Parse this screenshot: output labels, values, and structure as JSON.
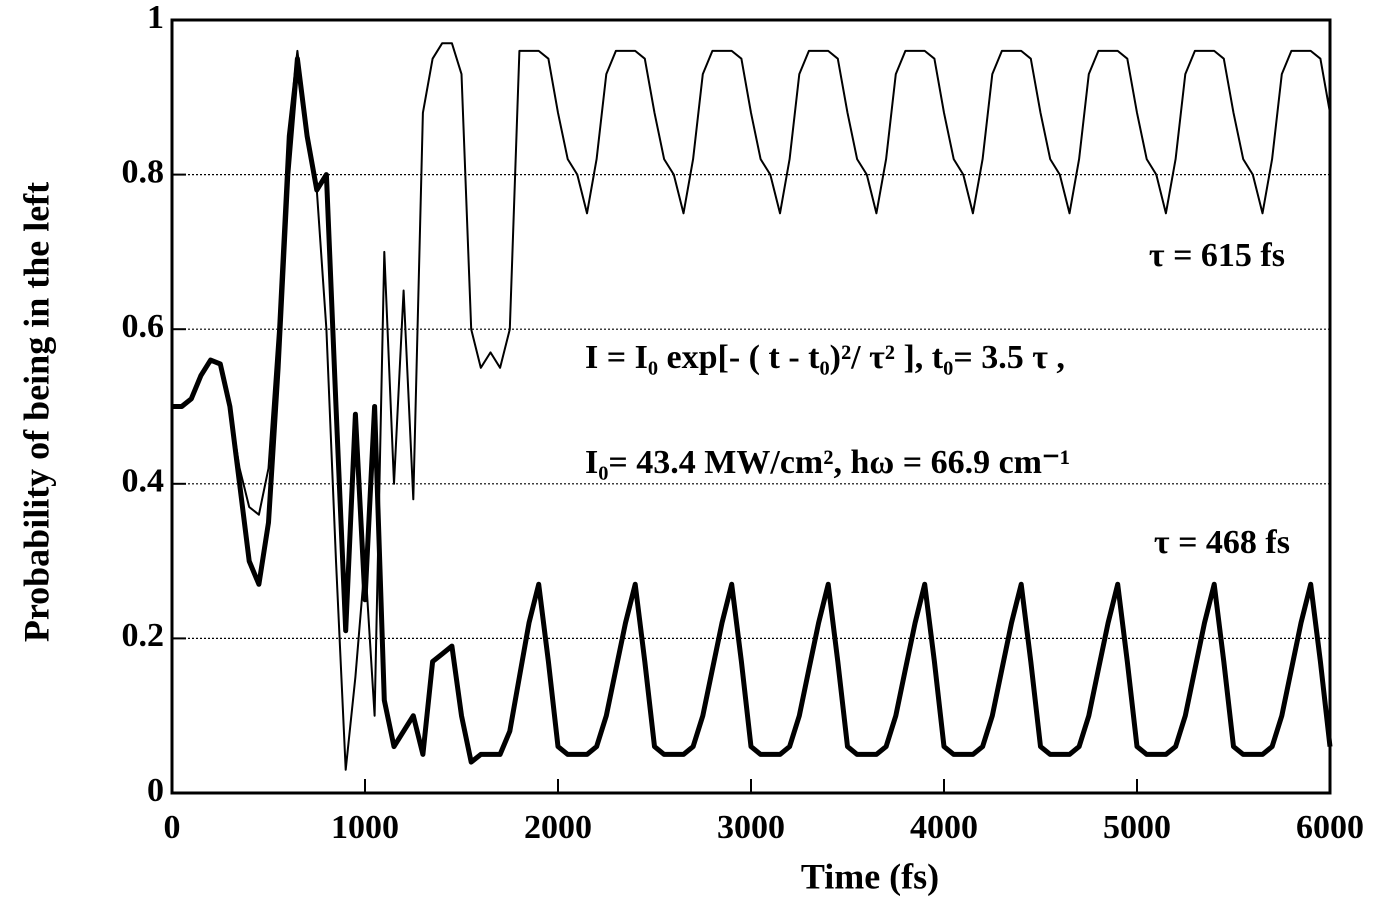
{
  "chart_data": {
    "type": "line",
    "xlabel": "Time (fs)",
    "ylabel": "Probability of being in the left",
    "annotations": [
      "I = I₀ exp[- ( t - t₀)²/ τ² ], t₀= 3.5 τ ,",
      "I₀= 43.4 MW/cm², hω = 66.9 cm⁻¹"
    ],
    "xlim": [
      0,
      6000
    ],
    "xticks": [
      0,
      1000,
      2000,
      3000,
      4000,
      5000,
      6000
    ],
    "ylim": [
      0,
      1
    ],
    "yticks": [
      0,
      0.2,
      0.4,
      0.6,
      0.8,
      1
    ],
    "grid": true,
    "x": [
      0,
      50,
      100,
      150,
      200,
      250,
      300,
      350,
      400,
      450,
      500,
      550,
      600,
      650,
      700,
      750,
      800,
      850,
      900,
      950,
      1000,
      1050,
      1100,
      1150,
      1200,
      1250,
      1300,
      1350,
      1400,
      1450,
      1500,
      1550,
      1600,
      1650,
      1700,
      1750,
      1800,
      1850,
      1900,
      1950,
      2000,
      2050,
      2100,
      2150,
      2200,
      2250,
      2300,
      2350,
      2400,
      2450,
      2500,
      2550,
      2600,
      2650,
      2700,
      2750,
      2800,
      2850,
      2900,
      2950,
      3000,
      3050,
      3100,
      3150,
      3200,
      3250,
      3300,
      3350,
      3400,
      3450,
      3500,
      3550,
      3600,
      3650,
      3700,
      3750,
      3800,
      3850,
      3900,
      3950,
      4000,
      4050,
      4100,
      4150,
      4200,
      4250,
      4300,
      4350,
      4400,
      4450,
      4500,
      4550,
      4600,
      4650,
      4700,
      4750,
      4800,
      4850,
      4900,
      4950,
      5000,
      5050,
      5100,
      5150,
      5200,
      5250,
      5300,
      5350,
      5400,
      5450,
      5500,
      5550,
      5600,
      5650,
      5700,
      5750,
      5800,
      5850,
      5900,
      5950,
      6000
    ],
    "series": [
      {
        "name": "τ = 615 fs",
        "color": "#000000",
        "width": 2,
        "values": [
          0.5,
          0.5,
          0.51,
          0.54,
          0.56,
          0.555,
          0.5,
          0.42,
          0.37,
          0.36,
          0.42,
          0.6,
          0.85,
          0.96,
          0.85,
          0.78,
          0.6,
          0.3,
          0.03,
          0.15,
          0.3,
          0.1,
          0.7,
          0.4,
          0.65,
          0.38,
          0.88,
          0.95,
          0.97,
          0.97,
          0.93,
          0.6,
          0.55,
          0.57,
          0.55,
          0.6,
          0.96,
          0.96,
          0.96,
          0.95,
          0.88,
          0.82,
          0.8,
          0.75,
          0.82,
          0.93,
          0.96,
          0.96,
          0.96,
          0.95,
          0.88,
          0.82,
          0.8,
          0.75,
          0.82,
          0.93,
          0.96,
          0.96,
          0.96,
          0.95,
          0.88,
          0.82,
          0.8,
          0.75,
          0.82,
          0.93,
          0.96,
          0.96,
          0.96,
          0.95,
          0.88,
          0.82,
          0.8,
          0.75,
          0.82,
          0.93,
          0.96,
          0.96,
          0.96,
          0.95,
          0.88,
          0.82,
          0.8,
          0.75,
          0.82,
          0.93,
          0.96,
          0.96,
          0.96,
          0.95,
          0.88,
          0.82,
          0.8,
          0.75,
          0.82,
          0.93,
          0.96,
          0.96,
          0.96,
          0.95,
          0.88,
          0.82,
          0.8,
          0.75,
          0.82,
          0.93,
          0.96,
          0.96,
          0.96,
          0.95,
          0.88,
          0.82,
          0.8,
          0.75,
          0.82,
          0.93,
          0.96,
          0.96,
          0.96,
          0.95,
          0.88
        ]
      },
      {
        "name": "τ = 468 fs",
        "color": "#000000",
        "width": 5,
        "values": [
          0.5,
          0.5,
          0.51,
          0.54,
          0.56,
          0.555,
          0.5,
          0.4,
          0.3,
          0.27,
          0.35,
          0.55,
          0.8,
          0.95,
          0.85,
          0.78,
          0.8,
          0.5,
          0.21,
          0.49,
          0.25,
          0.5,
          0.12,
          0.06,
          0.08,
          0.1,
          0.05,
          0.17,
          0.18,
          0.19,
          0.1,
          0.04,
          0.05,
          0.05,
          0.05,
          0.08,
          0.15,
          0.22,
          0.27,
          0.17,
          0.06,
          0.05,
          0.05,
          0.05,
          0.06,
          0.1,
          0.16,
          0.22,
          0.27,
          0.17,
          0.06,
          0.05,
          0.05,
          0.05,
          0.06,
          0.1,
          0.16,
          0.22,
          0.27,
          0.17,
          0.06,
          0.05,
          0.05,
          0.05,
          0.06,
          0.1,
          0.16,
          0.22,
          0.27,
          0.17,
          0.06,
          0.05,
          0.05,
          0.05,
          0.06,
          0.1,
          0.16,
          0.22,
          0.27,
          0.17,
          0.06,
          0.05,
          0.05,
          0.05,
          0.06,
          0.1,
          0.16,
          0.22,
          0.27,
          0.17,
          0.06,
          0.05,
          0.05,
          0.05,
          0.06,
          0.1,
          0.16,
          0.22,
          0.27,
          0.17,
          0.06,
          0.05,
          0.05,
          0.05,
          0.06,
          0.1,
          0.16,
          0.22,
          0.27,
          0.17,
          0.06,
          0.05,
          0.05,
          0.05,
          0.06,
          0.1,
          0.16,
          0.22,
          0.27,
          0.17,
          0.06
        ]
      }
    ]
  }
}
